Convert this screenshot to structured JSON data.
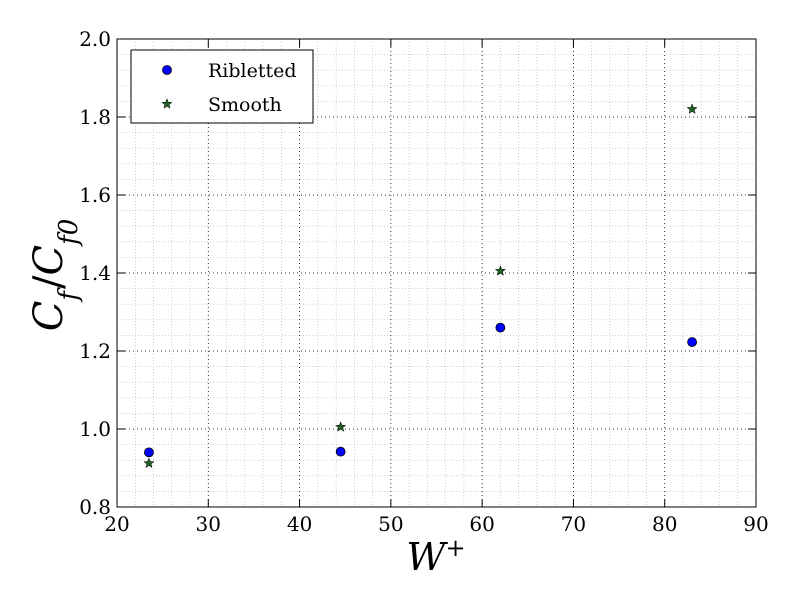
{
  "chart_data": {
    "type": "scatter",
    "title": "",
    "xlabel_main": "W",
    "xlabel_sup": "+",
    "ylabel_num": "C",
    "ylabel_num_sub": "f",
    "ylabel_sep": "/",
    "ylabel_den": "C",
    "ylabel_den_sub": "f0",
    "xlim": [
      20,
      90
    ],
    "ylim": [
      0.8,
      2.0
    ],
    "x_ticks": [
      20,
      30,
      40,
      50,
      60,
      70,
      80,
      90
    ],
    "y_ticks": [
      0.8,
      1.0,
      1.2,
      1.4,
      1.6,
      1.8,
      2.0
    ],
    "x_tick_labels": [
      "20",
      "30",
      "40",
      "50",
      "60",
      "70",
      "80",
      "90"
    ],
    "y_tick_labels": [
      "0.8",
      "1.0",
      "1.2",
      "1.4",
      "1.6",
      "1.8",
      "2.0"
    ],
    "grid": true,
    "minor_grid": true,
    "legend_position": "top-left",
    "series": [
      {
        "name": "Ribletted",
        "marker": "circle",
        "color": "#0000ff",
        "x": [
          23.5,
          44.5,
          62.0,
          83.0
        ],
        "y": [
          0.94,
          0.942,
          1.26,
          1.223
        ]
      },
      {
        "name": "Smooth",
        "marker": "star",
        "color": "#1f5f1f",
        "x": [
          23.5,
          44.5,
          62.0,
          83.0
        ],
        "y": [
          0.912,
          1.005,
          1.405,
          1.82
        ]
      }
    ]
  }
}
